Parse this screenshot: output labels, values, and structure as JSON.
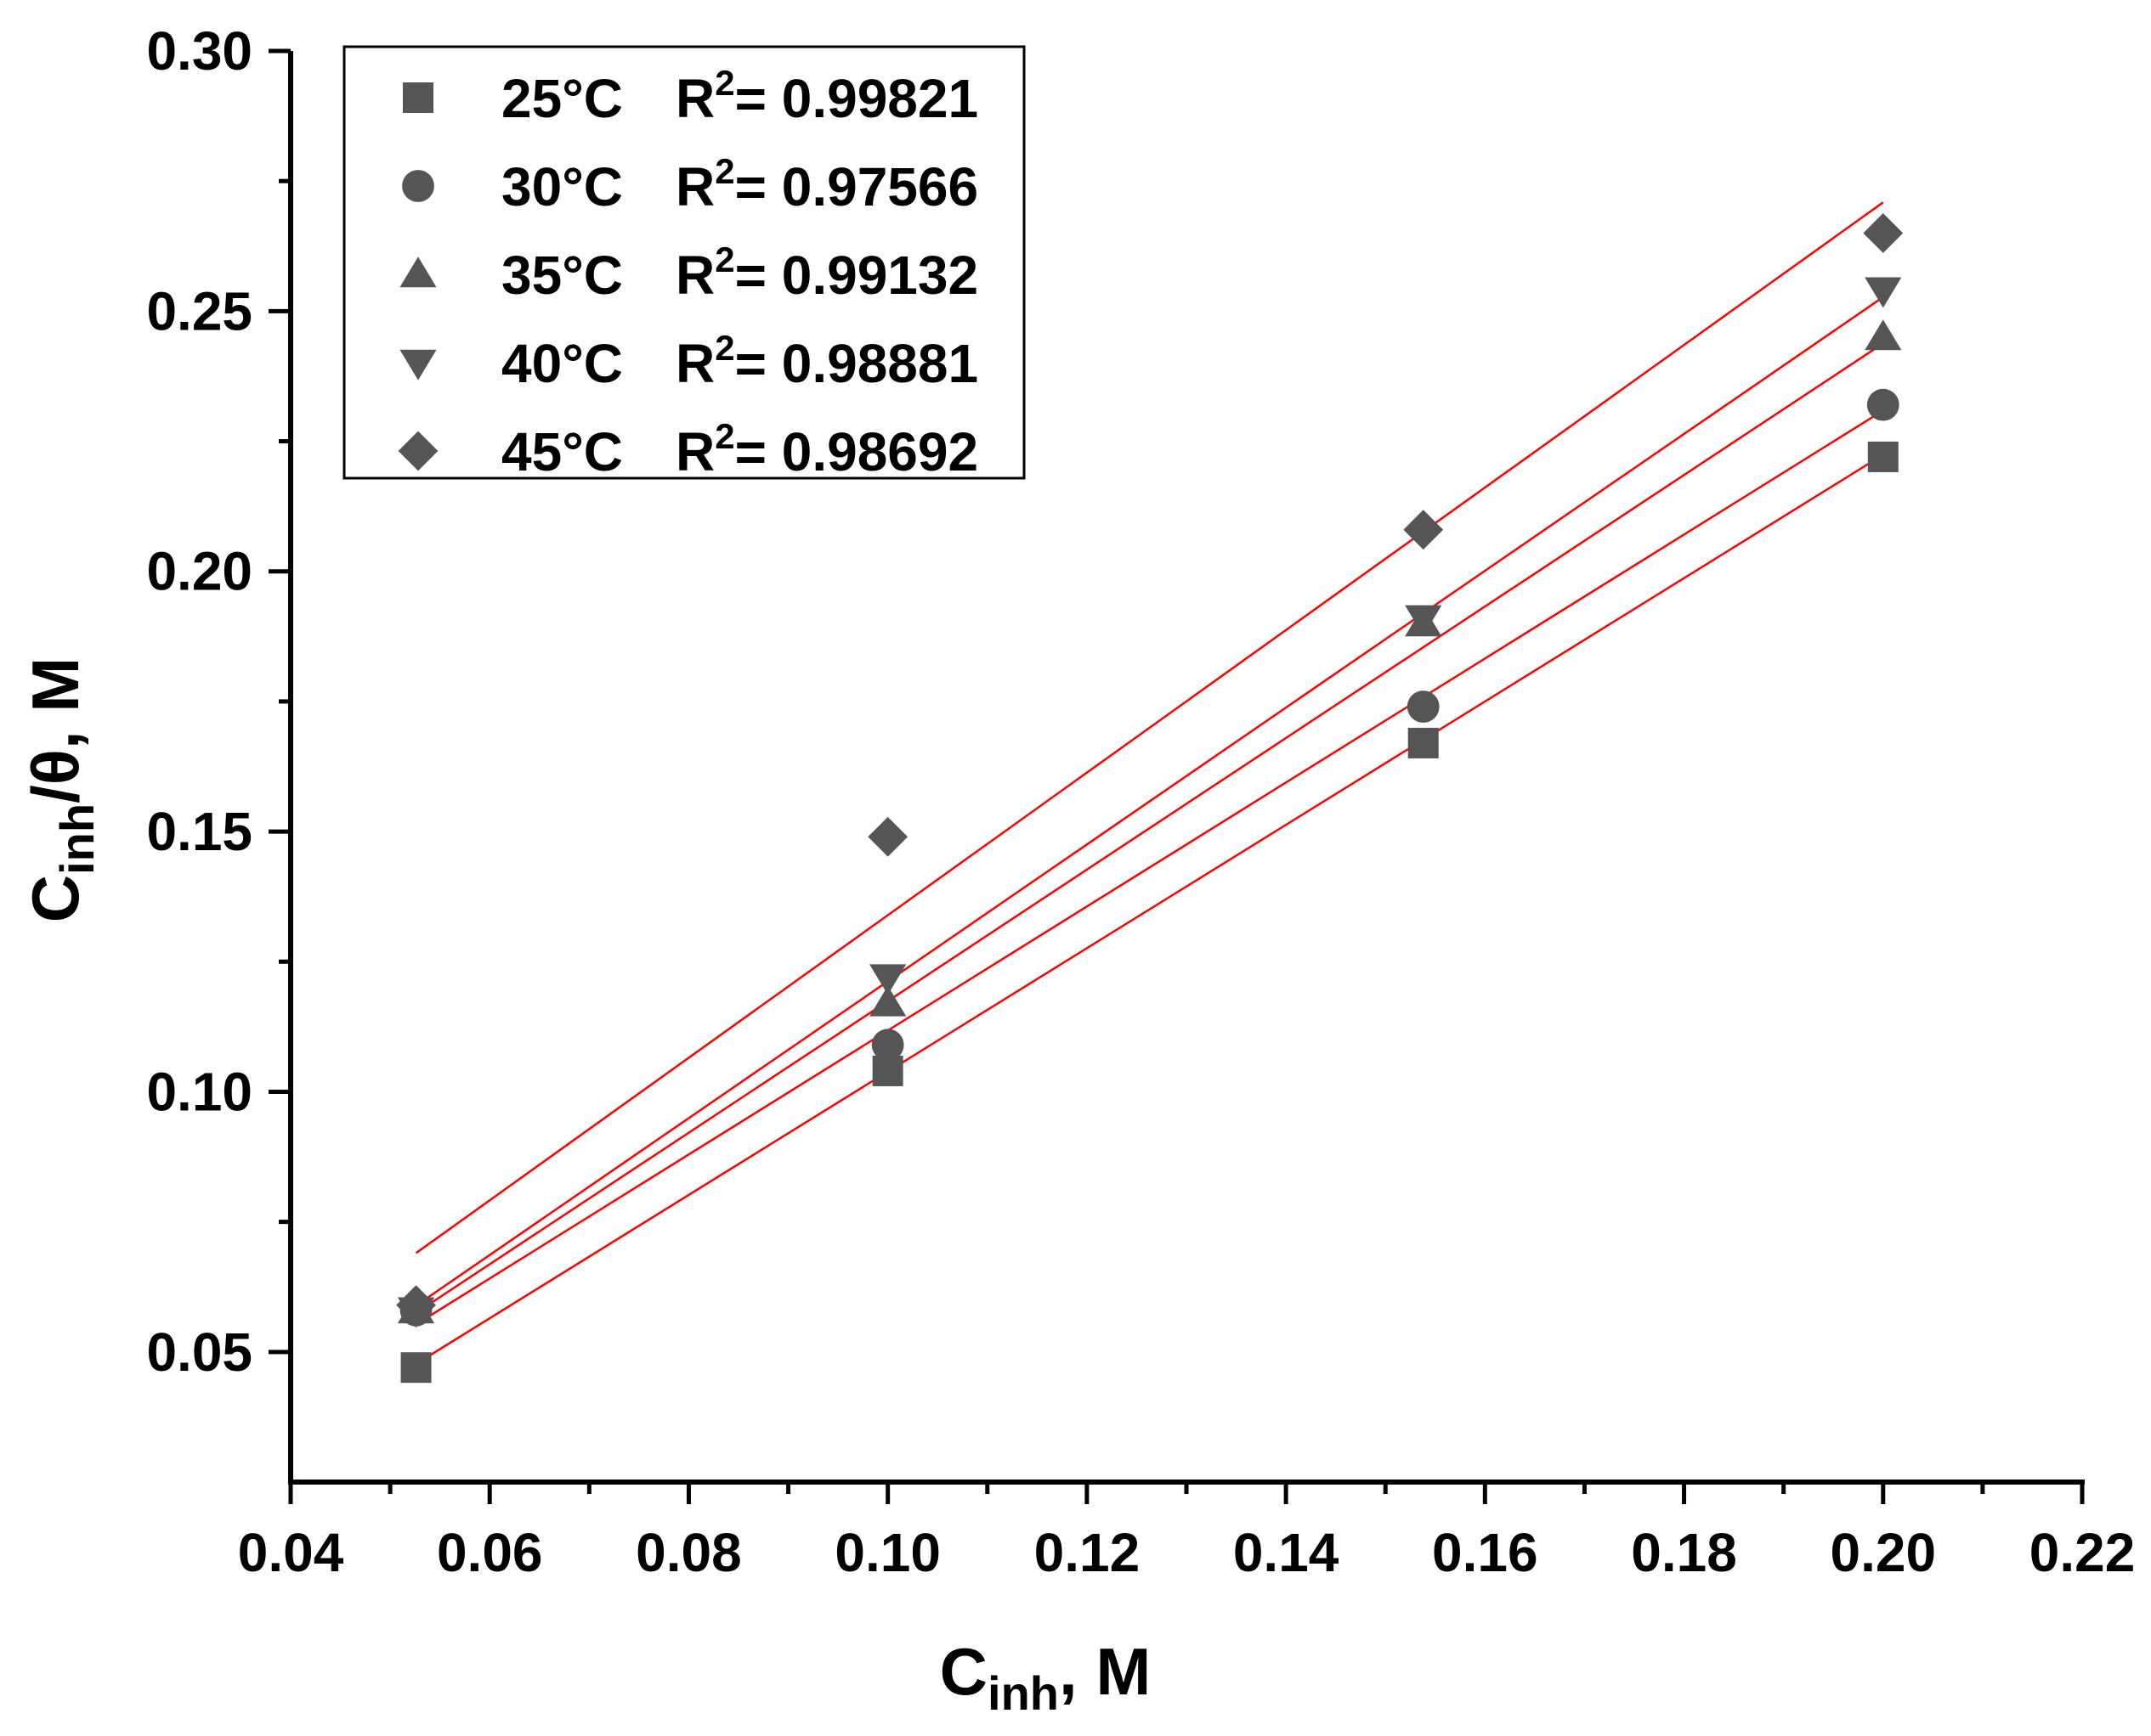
{
  "chart_data": {
    "type": "scatter",
    "title": "",
    "xlabel": {
      "main": "C",
      "sub": "inh",
      "suffix": ", M"
    },
    "ylabel": {
      "main": "C",
      "sub": "inh",
      "suffix": "/θ, M"
    },
    "xlim": [
      0.04,
      0.22
    ],
    "ylim": [
      0.025,
      0.3
    ],
    "xticks": [
      0.04,
      0.06,
      0.08,
      0.1,
      0.12,
      0.14,
      0.16,
      0.18,
      0.2,
      0.22
    ],
    "xtick_labels": [
      "0.04",
      "0.06",
      "0.08",
      "0.10",
      "0.12",
      "0.14",
      "0.16",
      "0.18",
      "0.20",
      "0.22"
    ],
    "yticks": [
      0.05,
      0.1,
      0.15,
      0.2,
      0.25,
      0.3
    ],
    "ytick_labels": [
      "0.05",
      "0.10",
      "0.15",
      "0.20",
      "0.25",
      "0.30"
    ],
    "legend_position": "top-left",
    "marker_color": "#555555",
    "fit_color": "#ff0000",
    "x": [
      0.0526,
      0.1,
      0.1538,
      0.2
    ],
    "series": [
      {
        "name": "25°C",
        "r2_label": "R",
        "r2_exp": "2",
        "r2_value": "= 0.99821",
        "marker": "square",
        "values": [
          0.047,
          0.104,
          0.167,
          0.222
        ],
        "fit": [
          [
            0.0526,
            0.0477
          ],
          [
            0.2,
            0.2224
          ]
        ]
      },
      {
        "name": "30°C",
        "r2_label": "R",
        "r2_exp": "2",
        "r2_value": "= 0.97566",
        "marker": "circle",
        "values": [
          0.058,
          0.109,
          0.174,
          0.232
        ],
        "fit": [
          [
            0.0526,
            0.0553
          ],
          [
            0.2,
            0.2309
          ]
        ]
      },
      {
        "name": "35°C",
        "r2_label": "R",
        "r2_exp": "2",
        "r2_value": "= 0.99132",
        "marker": "triangle-up",
        "values": [
          0.058,
          0.117,
          0.19,
          0.245
        ],
        "fit": [
          [
            0.0526,
            0.0575
          ],
          [
            0.2,
            0.2438
          ]
        ]
      },
      {
        "name": "40°C",
        "r2_label": "R",
        "r2_exp": "2",
        "r2_value": "= 0.98881",
        "marker": "triangle-down",
        "values": [
          0.058,
          0.122,
          0.191,
          0.254
        ],
        "fit": [
          [
            0.0526,
            0.0589
          ],
          [
            0.2,
            0.2527
          ]
        ]
      },
      {
        "name": "45°C",
        "r2_label": "R",
        "r2_exp": "2",
        "r2_value": "= 0.98692",
        "marker": "diamond",
        "values": [
          0.059,
          0.149,
          0.208,
          0.265
        ],
        "fit": [
          [
            0.0526,
            0.069
          ],
          [
            0.2,
            0.2709
          ]
        ]
      }
    ]
  }
}
